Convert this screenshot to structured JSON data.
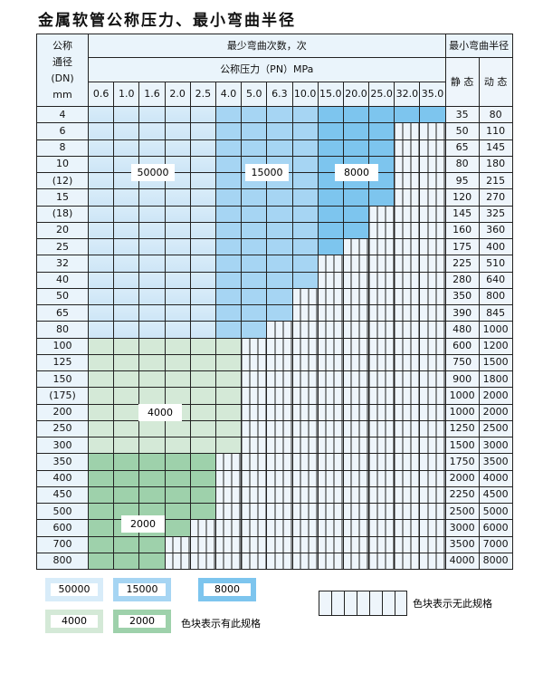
{
  "title": "金属软管公称压力、最小弯曲半径",
  "header": {
    "dn_label": [
      "公称",
      "通径",
      "(DN)",
      "mm"
    ],
    "bend_count": "最少弯曲次数，次",
    "pressure": "公称压力（PN）MPa",
    "min_radius": "最小弯曲半径",
    "static": "静 态",
    "dynamic": "动 态",
    "pressures": [
      "0.6",
      "1.0",
      "1.6",
      "2.0",
      "2.5",
      "4.0",
      "5.0",
      "6.3",
      "10.0",
      "15.0",
      "20.0",
      "25.0",
      "32.0",
      "35.0"
    ]
  },
  "cell_legend": {
    "A": "50000",
    "B": "15000",
    "C": "8000",
    "G": "4000",
    "H": "2000",
    "N": "无此规格"
  },
  "rows": [
    {
      "dn": "4",
      "cells": "AAAAABBBBCCCCC",
      "static": "35",
      "dynamic": "80"
    },
    {
      "dn": "6",
      "cells": "AAAAABBBBCCCNN",
      "static": "50",
      "dynamic": "110"
    },
    {
      "dn": "8",
      "cells": "AAAAABBBBCCCNN",
      "static": "65",
      "dynamic": "145"
    },
    {
      "dn": "10",
      "cells": "AAAAABBBBCCCNN",
      "static": "80",
      "dynamic": "180"
    },
    {
      "dn": "(12)",
      "cells": "AAAAABBBBCCCNN",
      "static": "95",
      "dynamic": "215"
    },
    {
      "dn": "15",
      "cells": "AAAAABBBBCCCNN",
      "static": "120",
      "dynamic": "270"
    },
    {
      "dn": "(18)",
      "cells": "AAAAABBBBCCNNN",
      "static": "145",
      "dynamic": "325"
    },
    {
      "dn": "20",
      "cells": "AAAAABBBBCCNNN",
      "static": "160",
      "dynamic": "360"
    },
    {
      "dn": "25",
      "cells": "AAAAABBBBCNNNN",
      "static": "175",
      "dynamic": "400"
    },
    {
      "dn": "32",
      "cells": "AAAAABBBBNNNNN",
      "static": "225",
      "dynamic": "510"
    },
    {
      "dn": "40",
      "cells": "AAAAABBBBNNNNN",
      "static": "280",
      "dynamic": "640"
    },
    {
      "dn": "50",
      "cells": "AAAAABBBNNNNNN",
      "static": "350",
      "dynamic": "800"
    },
    {
      "dn": "65",
      "cells": "AAAAABBBNNNNNN",
      "static": "390",
      "dynamic": "845"
    },
    {
      "dn": "80",
      "cells": "AAAAABBNNNNNNN",
      "static": "480",
      "dynamic": "1000"
    },
    {
      "dn": "100",
      "cells": "GGGGGGNNNNNNNN",
      "static": "600",
      "dynamic": "1200"
    },
    {
      "dn": "125",
      "cells": "GGGGGGNNNNNNNN",
      "static": "750",
      "dynamic": "1500"
    },
    {
      "dn": "150",
      "cells": "GGGGGGNNNNNNNN",
      "static": "900",
      "dynamic": "1800"
    },
    {
      "dn": "(175)",
      "cells": "GGGGGGNNNNNNNN",
      "static": "1000",
      "dynamic": "2000"
    },
    {
      "dn": "200",
      "cells": "GGGGGGNNNNNNNN",
      "static": "1000",
      "dynamic": "2000"
    },
    {
      "dn": "250",
      "cells": "GGGGGGNNNNNNNN",
      "static": "1250",
      "dynamic": "2500"
    },
    {
      "dn": "300",
      "cells": "GGGGGGNNNNNNNN",
      "static": "1500",
      "dynamic": "3000"
    },
    {
      "dn": "350",
      "cells": "HHHHHNNNNNNNNN",
      "static": "1750",
      "dynamic": "3500"
    },
    {
      "dn": "400",
      "cells": "HHHHHNNNNNNNNN",
      "static": "2000",
      "dynamic": "4000"
    },
    {
      "dn": "450",
      "cells": "HHHHHNNNNNNNNN",
      "static": "2250",
      "dynamic": "4500"
    },
    {
      "dn": "500",
      "cells": "HHHHHNNNNNNNNN",
      "static": "2500",
      "dynamic": "5000"
    },
    {
      "dn": "600",
      "cells": "HHHHNNNNNNNNNN",
      "static": "3000",
      "dynamic": "6000"
    },
    {
      "dn": "700",
      "cells": "HHHNNNNNNNNNNN",
      "static": "3500",
      "dynamic": "7000"
    },
    {
      "dn": "800",
      "cells": "HHHNNNNNNNNNNN",
      "static": "4000",
      "dynamic": "8000"
    }
  ],
  "legend": {
    "has_spec": "色块表示有此规格",
    "no_spec": "色块表示无此规格"
  },
  "colors": {
    "A": "#d8ecf9",
    "B": "#a6d5f3",
    "C": "#7dc5ee",
    "G": "#d4e9d7",
    "H": "#9ed1ab"
  }
}
